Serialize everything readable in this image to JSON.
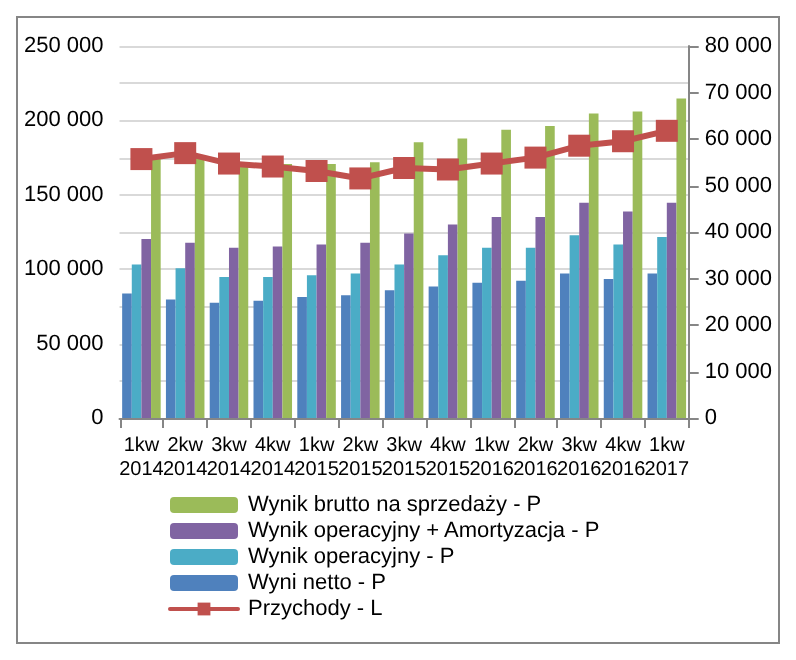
{
  "chart_data": {
    "type": "bar",
    "categories": [
      "1kw\n2014",
      "2kw\n2014",
      "3kw\n2014",
      "4kw\n2014",
      "1kw\n2015",
      "2kw\n2015",
      "3kw\n2015",
      "4kw\n2015",
      "1kw\n2016",
      "2kw\n2016",
      "3kw\n2016",
      "4kw\n2016",
      "1kw\n2017"
    ],
    "series": [
      {
        "name": "Wyni netto - P",
        "color": "#4f81bd",
        "axis": "y2",
        "values": [
          26800,
          25500,
          24800,
          25200,
          26000,
          26400,
          27500,
          28300,
          29100,
          29500,
          31100,
          29900,
          31100
        ]
      },
      {
        "name": "Wynik operacyjny - P",
        "color": "#4bacc6",
        "axis": "y2",
        "values": [
          33000,
          32200,
          30300,
          30300,
          30700,
          31100,
          33000,
          35000,
          36600,
          36600,
          39300,
          37300,
          38900
        ]
      },
      {
        "name": "Wynik operacyjny + Amortyzacja - P",
        "color": "#8064a2",
        "axis": "y2",
        "values": [
          38500,
          37700,
          36600,
          36900,
          37300,
          37700,
          39700,
          41600,
          43200,
          43200,
          46300,
          44400,
          46300
        ]
      },
      {
        "name": "Wynik brutto na sprzedaży - P",
        "color": "#9bbb59",
        "axis": "y2",
        "values": [
          55700,
          56000,
          54800,
          54600,
          54600,
          55000,
          59300,
          60100,
          62000,
          62800,
          65500,
          65900,
          68700
        ]
      },
      {
        "name": "Przychody - L",
        "color": "#c0504d",
        "type": "line",
        "axis": "y",
        "values": [
          174000,
          178000,
          171000,
          169000,
          166000,
          161000,
          168000,
          167000,
          171000,
          175000,
          183000,
          186000,
          193000
        ]
      }
    ],
    "ylim": [
      0,
      250000
    ],
    "yticks": [
      {
        "value": 0,
        "label": "0"
      },
      {
        "value": 25000,
        "label": null
      },
      {
        "value": 50000,
        "label": "50 000"
      },
      {
        "value": 75000,
        "label": null
      },
      {
        "value": 100000,
        "label": "100 000"
      },
      {
        "value": 125000,
        "label": null
      },
      {
        "value": 150000,
        "label": "150 000"
      },
      {
        "value": 175000,
        "label": null
      },
      {
        "value": 200000,
        "label": "200 000"
      },
      {
        "value": 225000,
        "label": null
      },
      {
        "value": 250000,
        "label": "250 000"
      }
    ],
    "y2lim": [
      0,
      80000
    ],
    "y2ticks": [
      {
        "value": 0,
        "label": "0"
      },
      {
        "value": 10000,
        "label": "10 000"
      },
      {
        "value": 20000,
        "label": "20 000"
      },
      {
        "value": 30000,
        "label": "30 000"
      },
      {
        "value": 40000,
        "label": "40 000"
      },
      {
        "value": 50000,
        "label": "50 000"
      },
      {
        "value": 60000,
        "label": "60 000"
      },
      {
        "value": 70000,
        "label": "70 000"
      },
      {
        "value": 80000,
        "label": "80 000"
      }
    ],
    "grid": "y",
    "legend": "bottom",
    "marker": "square",
    "line_style": "solid"
  }
}
